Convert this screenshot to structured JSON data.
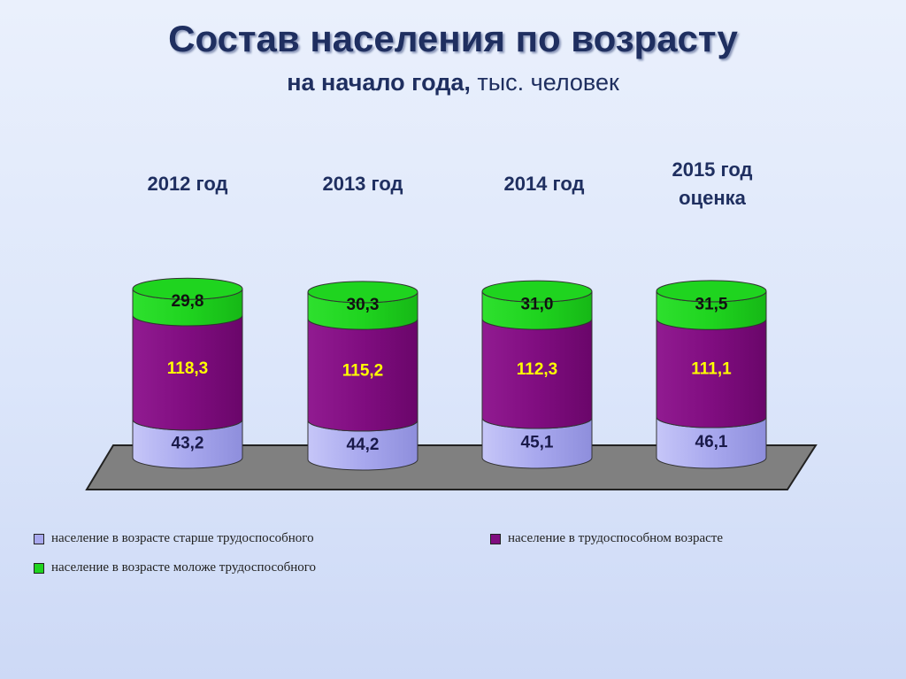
{
  "title": "Состав населения по возрасту",
  "subtitle_bold": "на начало года,",
  "subtitle_rest": " тыс. человек",
  "colors": {
    "older": "#a8a8ee",
    "working": "#800d80",
    "younger": "#1fd41f",
    "floor": "#808080"
  },
  "legend": {
    "older": "население в возрасте старше трудоспособного",
    "working": "население в трудоспособном возрасте",
    "younger": "население в возрасте моложе трудоспособного"
  },
  "chart_data": {
    "type": "bar",
    "stacked": true,
    "title": "Состав населения по возрасту",
    "subtitle": "на начало года, тыс. человек",
    "categories": [
      "2012 год",
      "2013 год",
      "2014 год",
      "2015 год оценка"
    ],
    "series": [
      {
        "name": "население в возрасте старше трудоспособного",
        "values": [
          43.2,
          44.2,
          45.1,
          46.1
        ],
        "labels": [
          "43,2",
          "44,2",
          "45,1",
          "46,1"
        ]
      },
      {
        "name": "население в трудоспособном возрасте",
        "values": [
          118.3,
          115.2,
          112.3,
          111.1
        ],
        "labels": [
          "118,3",
          "115,2",
          "112,3",
          "111,1"
        ]
      },
      {
        "name": "население в возрасте моложе трудоспособного",
        "values": [
          29.8,
          30.3,
          31.0,
          31.5
        ],
        "labels": [
          "29,8",
          "30,3",
          "31,0",
          "31,5"
        ]
      }
    ],
    "legend_position": "bottom"
  }
}
